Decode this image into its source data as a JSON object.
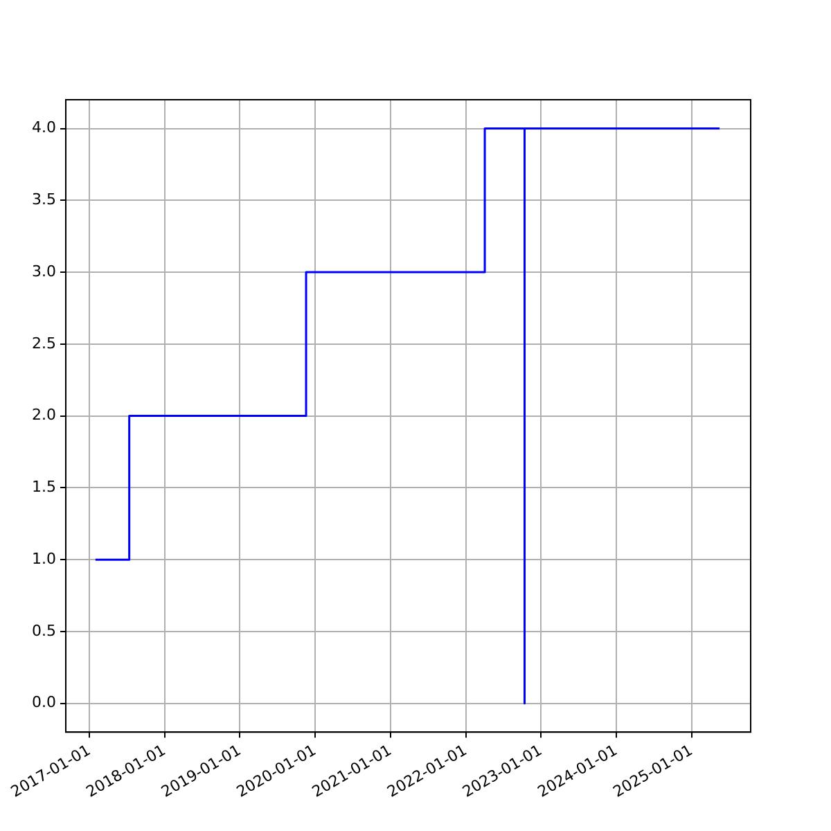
{
  "chart_data": {
    "type": "step",
    "x": [
      "2017-01-30",
      "2017-07-13",
      "2019-11-18",
      "2022-04-03",
      "2022-10-13",
      "2022-10-13",
      "2025-05-16"
    ],
    "series": [
      {
        "color": "#0000ff",
        "values": [
          1,
          2,
          3,
          4,
          0,
          4,
          4
        ]
      }
    ],
    "xlim": [
      "2016-09-08",
      "2025-10-14"
    ],
    "xticks": [
      "2017-01-01",
      "2018-01-01",
      "2019-01-01",
      "2020-01-01",
      "2021-01-01",
      "2022-01-01",
      "2023-01-01",
      "2024-01-01",
      "2025-01-01"
    ],
    "ylim": [
      -0.2,
      4.2
    ],
    "yticks": [
      {
        "value": 0,
        "label": "0.0"
      },
      {
        "value": 0.5,
        "label": "0.5"
      },
      {
        "value": 1,
        "label": "1.0"
      },
      {
        "value": 1.5,
        "label": "1.5"
      },
      {
        "value": 2,
        "label": "2.0"
      },
      {
        "value": 2.5,
        "label": "2.5"
      },
      {
        "value": 3,
        "label": "3.0"
      },
      {
        "value": 3.5,
        "label": "3.5"
      },
      {
        "value": 4,
        "label": "4.0"
      }
    ],
    "grid": true,
    "legend": false,
    "marker": "none",
    "line_style": "solid"
  }
}
